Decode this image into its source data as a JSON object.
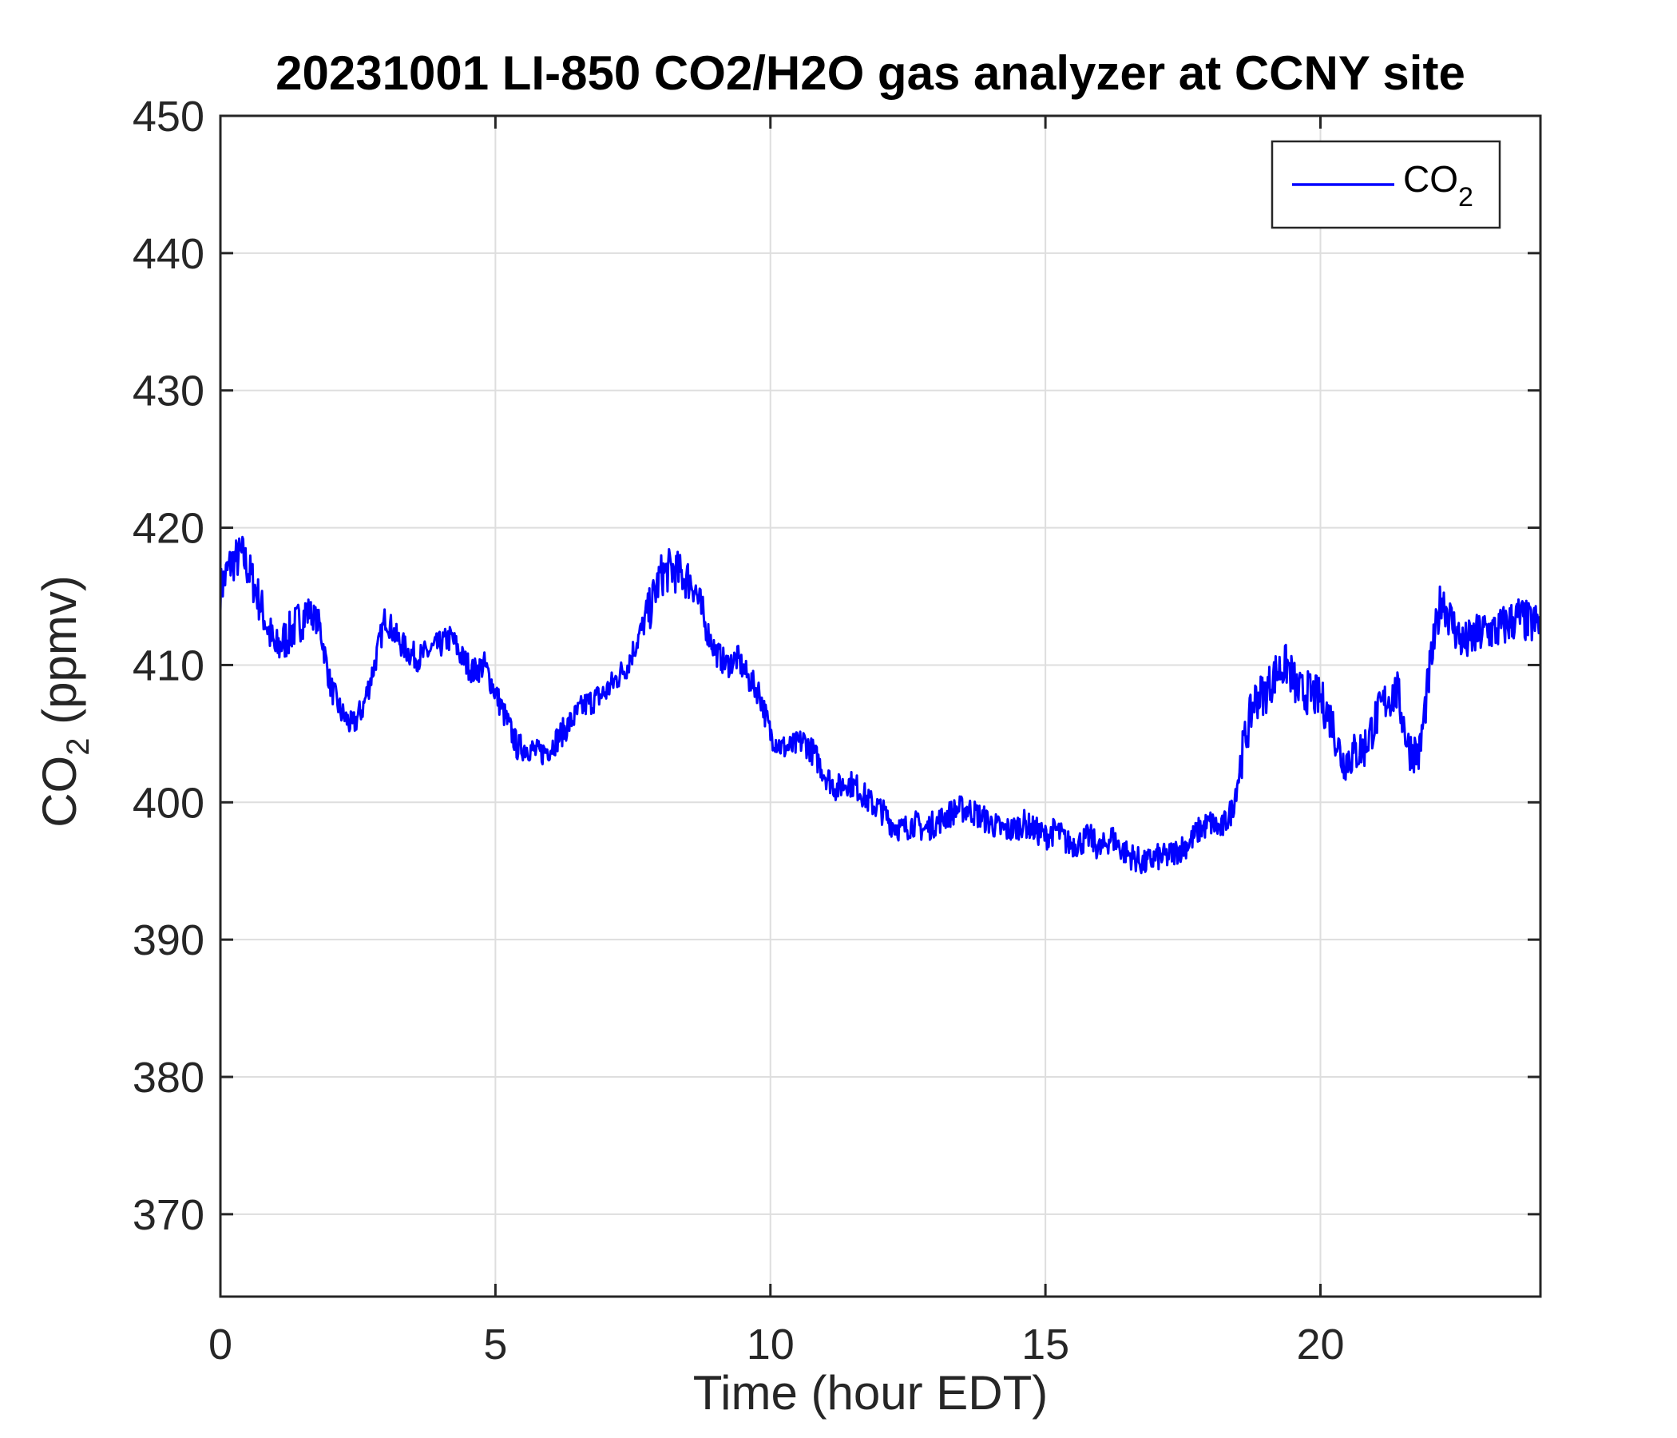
{
  "chart_data": {
    "type": "line",
    "title": "20231001 LI-850 CO2/H2O gas analyzer at CCNY site",
    "xlabel": "Time (hour EDT)",
    "ylabel": {
      "main": "CO",
      "sub": "2",
      "unit": " (ppmv)"
    },
    "xlim": [
      0,
      24
    ],
    "ylim": [
      364,
      450
    ],
    "xticks": [
      0,
      5,
      10,
      15,
      20
    ],
    "yticks": [
      370,
      380,
      390,
      400,
      410,
      420,
      430,
      440,
      450
    ],
    "grid": true,
    "legend": {
      "position": "top-right"
    },
    "series": [
      {
        "name": {
          "main": "CO",
          "sub": "2"
        },
        "color": "#0000ff",
        "points": [
          [
            0.0,
            415.5
          ],
          [
            0.2,
            417.5
          ],
          [
            0.4,
            418.0
          ],
          [
            0.6,
            416.0
          ],
          [
            0.8,
            413.5
          ],
          [
            1.0,
            411.0
          ],
          [
            1.2,
            412.0
          ],
          [
            1.4,
            413.0
          ],
          [
            1.6,
            414.0
          ],
          [
            1.8,
            413.0
          ],
          [
            2.0,
            408.5
          ],
          [
            2.2,
            406.5
          ],
          [
            2.4,
            405.5
          ],
          [
            2.6,
            407.0
          ],
          [
            2.8,
            410.0
          ],
          [
            3.0,
            413.5
          ],
          [
            3.2,
            412.0
          ],
          [
            3.4,
            411.0
          ],
          [
            3.6,
            410.5
          ],
          [
            3.8,
            411.0
          ],
          [
            4.0,
            411.5
          ],
          [
            4.2,
            412.0
          ],
          [
            4.4,
            410.5
          ],
          [
            4.6,
            409.5
          ],
          [
            4.8,
            410.0
          ],
          [
            5.0,
            408.0
          ],
          [
            5.2,
            406.0
          ],
          [
            5.4,
            404.0
          ],
          [
            5.6,
            404.0
          ],
          [
            5.8,
            403.5
          ],
          [
            6.0,
            404.0
          ],
          [
            6.2,
            405.0
          ],
          [
            6.4,
            406.0
          ],
          [
            6.6,
            407.0
          ],
          [
            6.8,
            407.5
          ],
          [
            7.0,
            408.0
          ],
          [
            7.2,
            409.0
          ],
          [
            7.4,
            410.0
          ],
          [
            7.6,
            412.0
          ],
          [
            7.8,
            414.0
          ],
          [
            8.0,
            416.5
          ],
          [
            8.2,
            417.0
          ],
          [
            8.4,
            416.5
          ],
          [
            8.6,
            416.0
          ],
          [
            8.8,
            413.0
          ],
          [
            9.0,
            411.0
          ],
          [
            9.2,
            410.0
          ],
          [
            9.4,
            410.5
          ],
          [
            9.6,
            409.0
          ],
          [
            9.8,
            408.0
          ],
          [
            10.0,
            405.0
          ],
          [
            10.2,
            404.0
          ],
          [
            10.4,
            404.0
          ],
          [
            10.6,
            404.5
          ],
          [
            10.8,
            403.5
          ],
          [
            11.0,
            402.0
          ],
          [
            11.2,
            401.0
          ],
          [
            11.4,
            401.5
          ],
          [
            11.6,
            401.0
          ],
          [
            11.8,
            400.0
          ],
          [
            12.0,
            399.5
          ],
          [
            12.2,
            398.5
          ],
          [
            12.4,
            398.0
          ],
          [
            12.6,
            398.5
          ],
          [
            12.8,
            398.0
          ],
          [
            13.0,
            398.5
          ],
          [
            13.2,
            399.0
          ],
          [
            13.4,
            399.5
          ],
          [
            13.6,
            399.5
          ],
          [
            13.8,
            399.0
          ],
          [
            14.0,
            398.5
          ],
          [
            14.2,
            398.0
          ],
          [
            14.4,
            398.0
          ],
          [
            14.6,
            398.5
          ],
          [
            14.8,
            398.0
          ],
          [
            15.0,
            397.5
          ],
          [
            15.2,
            398.0
          ],
          [
            15.4,
            397.0
          ],
          [
            15.6,
            397.0
          ],
          [
            15.8,
            397.5
          ],
          [
            16.0,
            396.5
          ],
          [
            16.2,
            397.5
          ],
          [
            16.4,
            396.5
          ],
          [
            16.6,
            396.0
          ],
          [
            16.8,
            395.5
          ],
          [
            17.0,
            396.0
          ],
          [
            17.2,
            396.0
          ],
          [
            17.4,
            396.5
          ],
          [
            17.6,
            397.0
          ],
          [
            17.8,
            398.0
          ],
          [
            18.0,
            398.5
          ],
          [
            18.2,
            398.0
          ],
          [
            18.4,
            399.5
          ],
          [
            18.6,
            404.0
          ],
          [
            18.8,
            407.5
          ],
          [
            19.0,
            408.0
          ],
          [
            19.2,
            409.5
          ],
          [
            19.4,
            410.0
          ],
          [
            19.6,
            408.0
          ],
          [
            19.8,
            408.0
          ],
          [
            20.0,
            407.5
          ],
          [
            20.2,
            406.0
          ],
          [
            20.4,
            403.0
          ],
          [
            20.6,
            403.5
          ],
          [
            20.8,
            404.0
          ],
          [
            21.0,
            406.0
          ],
          [
            21.2,
            407.5
          ],
          [
            21.4,
            408.0
          ],
          [
            21.6,
            404.0
          ],
          [
            21.8,
            403.5
          ],
          [
            22.0,
            410.0
          ],
          [
            22.2,
            415.0
          ],
          [
            22.4,
            413.0
          ],
          [
            22.6,
            411.5
          ],
          [
            22.8,
            412.0
          ],
          [
            23.0,
            412.5
          ],
          [
            23.2,
            412.5
          ],
          [
            23.4,
            413.0
          ],
          [
            23.6,
            413.5
          ],
          [
            23.8,
            413.0
          ],
          [
            24.0,
            413.0
          ]
        ]
      }
    ]
  }
}
